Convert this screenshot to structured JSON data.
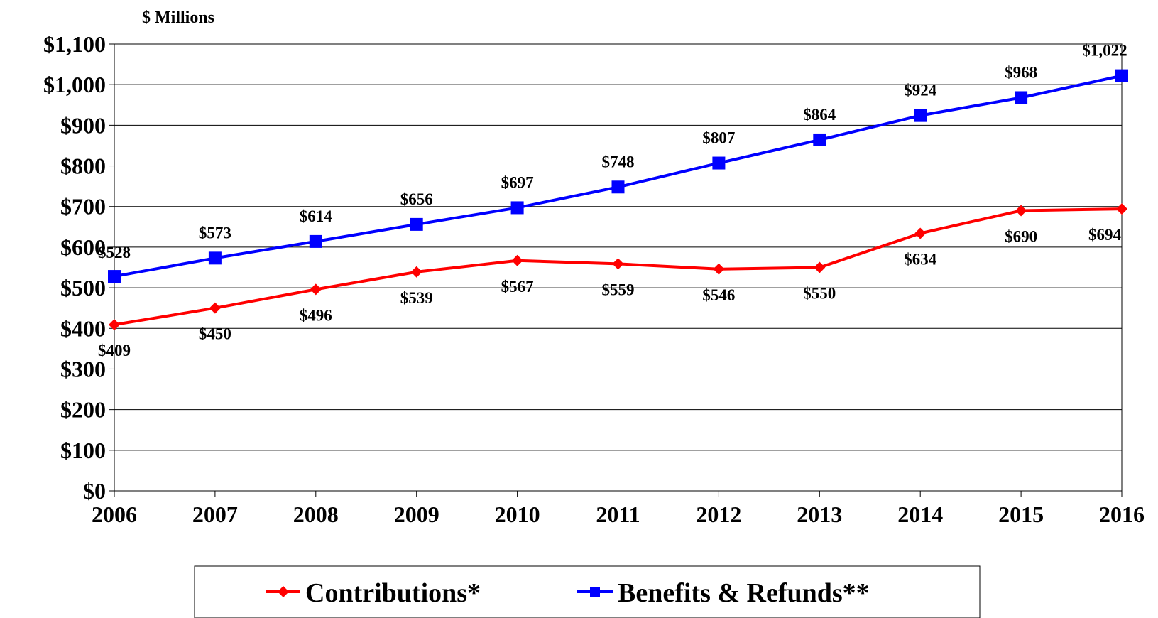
{
  "chart_data": {
    "type": "line",
    "ylabel": "$ Millions",
    "xlabel": "",
    "categories": [
      "2006",
      "2007",
      "2008",
      "2009",
      "2010",
      "2011",
      "2012",
      "2013",
      "2014",
      "2015",
      "2016"
    ],
    "ylim": [
      0,
      1100
    ],
    "yticks": [
      0,
      100,
      200,
      300,
      400,
      500,
      600,
      700,
      800,
      900,
      1000,
      1100
    ],
    "ytick_labels": [
      "$0",
      "$100",
      "$200",
      "$300",
      "$400",
      "$500",
      "$600",
      "$700",
      "$800",
      "$900",
      "$1,000",
      "$1,100"
    ],
    "grid": true,
    "legend_placement": "bottom",
    "series": [
      {
        "name": "Contributions*",
        "color": "#ff0000",
        "marker": "diamond",
        "values": [
          409,
          450,
          496,
          539,
          567,
          559,
          546,
          550,
          634,
          690,
          694
        ],
        "labels": [
          "$409",
          "$450",
          "$496",
          "$539",
          "$567",
          "$559",
          "$546",
          "$550",
          "$634",
          "$690",
          "$694"
        ]
      },
      {
        "name": "Benefits & Refunds**",
        "color": "#0000ff",
        "marker": "square",
        "values": [
          528,
          573,
          614,
          656,
          697,
          748,
          807,
          864,
          924,
          968,
          1022
        ],
        "labels": [
          "$528",
          "$573",
          "$614",
          "$656",
          "$697",
          "$748",
          "$807",
          "$864",
          "$924",
          "$968",
          "$1,022"
        ]
      }
    ]
  }
}
